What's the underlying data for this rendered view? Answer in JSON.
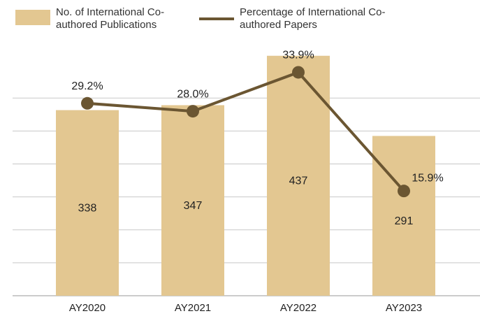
{
  "chart_data": {
    "type": "bar_line",
    "categories": [
      "AY2020",
      "AY2021",
      "AY2022",
      "AY2023"
    ],
    "series": [
      {
        "name": "No. of International Co-authored Publications",
        "color": "#e3c791",
        "type": "bar",
        "values": [
          338,
          347,
          437,
          291
        ]
      },
      {
        "name": "Percentage of International Co-authored Papers",
        "color": "#6b5632",
        "type": "line",
        "axis": "y2",
        "values": [
          29.2,
          28.0,
          33.9,
          15.9
        ],
        "value_labels": [
          "29.2%",
          "28.0%",
          "33.9%",
          "15.9%"
        ]
      }
    ],
    "ylim": [
      0,
      480
    ],
    "yticks": [
      0,
      60,
      120,
      180,
      240,
      300,
      360
    ],
    "y2lim": [
      0,
      40
    ],
    "grid": true,
    "legend": "top-left"
  }
}
